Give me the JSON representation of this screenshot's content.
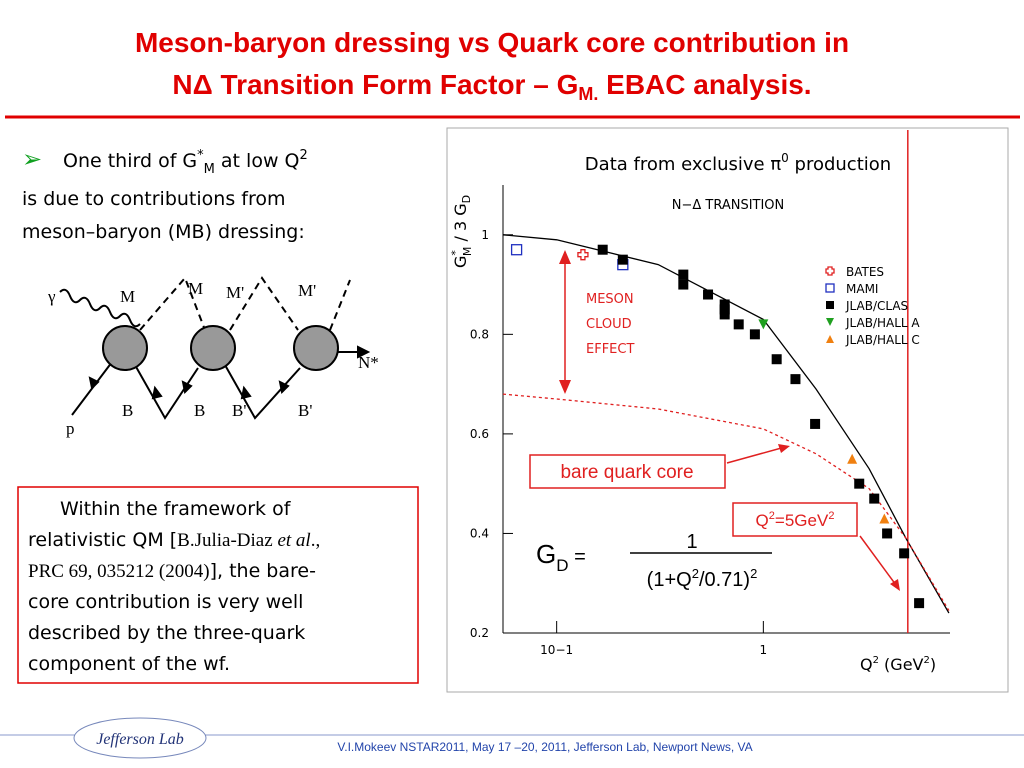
{
  "title": {
    "line1": "Meson-baryon dressing vs Quark core contribution  in",
    "line2_a": "NΔ Transition Form Factor – G",
    "line2_sub": "M.",
    "line2_b": " EBAC analysis."
  },
  "bullet": {
    "a": "One third of G",
    "sup": "*",
    "sub": "M",
    "b": " at low Q",
    "sup2": "2",
    "line2": "is due  to contributions from",
    "line3": "meson–baryon (MB) dressing:"
  },
  "diagram_labels": {
    "photon": "γ",
    "m1": "M",
    "m2": "M",
    "m3": "M'",
    "m4": "M'",
    "out": "N*",
    "p": "p",
    "b1": "B",
    "b2": "B",
    "b3": "B'",
    "b4": "B'"
  },
  "box": {
    "l1": "Within the framework of",
    "l2a": "relativistic QM  [",
    "l2b": "B.Julia-Diaz ",
    "l2c": "et al",
    "l2d": "., ",
    "l3a": "PRC 69, 035212 (2004)",
    "l3b": "]",
    "l3c": ", the bare-",
    "l4": "core contribution is very well",
    "l5": "described by the three-quark",
    "l6": "component of the wf."
  },
  "footer": "V.I.Mokeev   NSTAR2011, May  17 –20, 2011, Jefferson Lab, Newport News, VA",
  "logo": "Jefferson Lab",
  "chart_data": {
    "type": "scatter",
    "title": "Data from exclusive π",
    "title_sup": "0",
    "title_end": " production",
    "inner_title": "N−Δ TRANSITION",
    "y_label": "G",
    "y_label_sup": "*",
    "y_label_sub": "M",
    "y_label_mid": " / 3 G",
    "y_label_sub2": "D",
    "x_label": "Q",
    "x_label_sup": "2",
    "x_label_mid": " (GeV",
    "x_label_sup2": "2",
    "x_label_end": ")",
    "xlog": true,
    "xlim": [
      0.055,
      8
    ],
    "ylim": [
      0.2,
      1.1
    ],
    "xticks": [
      {
        "value": 0.1,
        "label": "10−1"
      },
      1
    ],
    "yticks": [
      0.2,
      0.4,
      0.6,
      0.8,
      1
    ],
    "series": [
      {
        "name": "BATES",
        "color": "#e02020",
        "marker": "cross",
        "x": [
          0.134
        ],
        "values": [
          0.96
        ]
      },
      {
        "name": "MAMI",
        "color": "#2030c0",
        "marker": "open-square",
        "x": [
          0.064,
          0.209
        ],
        "values": [
          0.97,
          0.94
        ]
      },
      {
        "name": "JLAB/CLAS",
        "color": "#000000",
        "marker": "square",
        "x": [
          0.167,
          0.209,
          0.41,
          0.41,
          0.54,
          0.65,
          0.65,
          0.65,
          0.76,
          0.91,
          1.16,
          1.43,
          1.78,
          2.91,
          3.44,
          3.97,
          4.8,
          5.67
        ],
        "values": [
          0.97,
          0.95,
          0.92,
          0.9,
          0.88,
          0.86,
          0.85,
          0.84,
          0.82,
          0.8,
          0.75,
          0.71,
          0.62,
          0.5,
          0.47,
          0.4,
          0.36,
          0.26
        ]
      },
      {
        "name": "JLAB/HALL A",
        "color": "#20a020",
        "marker": "triangle-down",
        "x": [
          1.0
        ],
        "values": [
          0.82
        ]
      },
      {
        "name": "JLAB/HALL C",
        "color": "#f08010",
        "marker": "triangle-up",
        "x": [
          2.69,
          3.85
        ],
        "values": [
          0.55,
          0.43
        ]
      }
    ],
    "curves": [
      {
        "color": "#000000",
        "dash": false,
        "x": [
          0.055,
          0.1,
          0.31,
          1,
          1.8,
          3.25,
          4.9,
          7.9
        ],
        "values": [
          1.0,
          0.99,
          0.94,
          0.83,
          0.69,
          0.53,
          0.39,
          0.24
        ]
      },
      {
        "color": "#e02020",
        "dash": true,
        "x": [
          0.055,
          0.1,
          0.31,
          1,
          1.8,
          3.25,
          4.9,
          7.9
        ],
        "values": [
          0.68,
          0.67,
          0.65,
          0.61,
          0.56,
          0.49,
          0.39,
          0.245
        ]
      }
    ],
    "vline": 5,
    "meson_cloud": [
      "MESON",
      "CLOUD",
      "EFFECT"
    ],
    "bare_label": "bare quark core",
    "q2_label": {
      "a": "Q",
      "sup": "2",
      "b": "=5GeV",
      "sup2": "2"
    },
    "formula": {
      "g": "G",
      "sub": "D",
      "eq": " =",
      "num": "1",
      "den_a": "(1+Q",
      "den_sup": "2",
      "den_b": "/0.71)",
      "den_sup2": "2"
    }
  }
}
